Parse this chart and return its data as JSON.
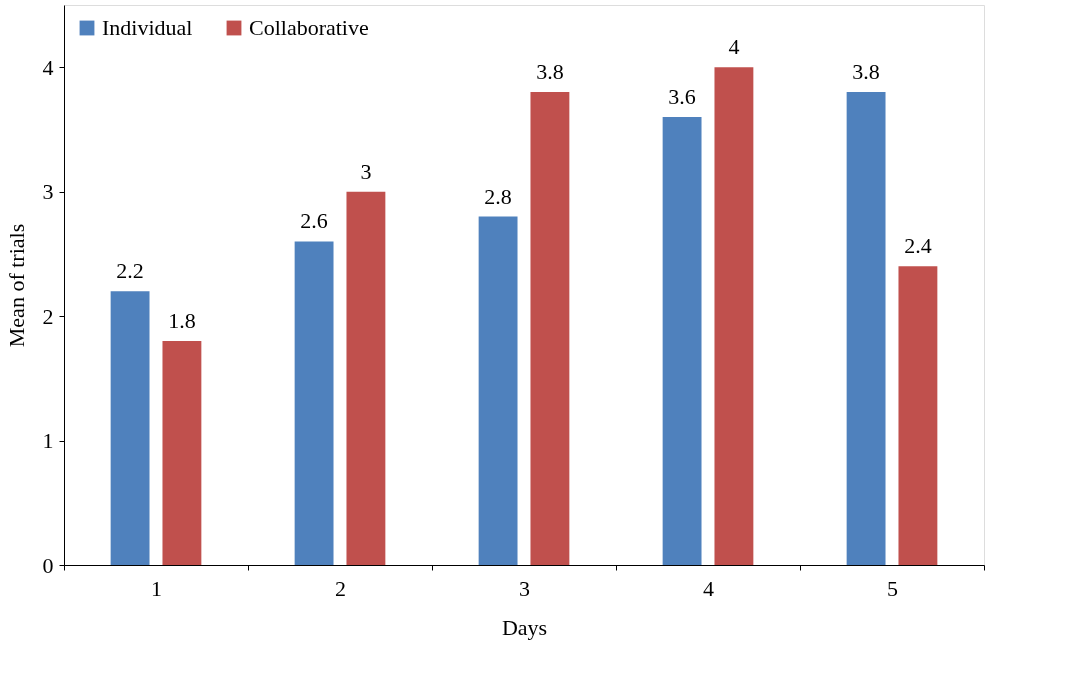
{
  "chart_data": {
    "type": "bar",
    "xlabel": "Days",
    "ylabel": "Mean of trials",
    "categories": [
      "1",
      "2",
      "3",
      "4",
      "5"
    ],
    "series": [
      {
        "name": "Individual",
        "color": "#4f81bd",
        "values": [
          2.2,
          2.6,
          2.8,
          3.6,
          3.8
        ]
      },
      {
        "name": "Collaborative",
        "color": "#c0504d",
        "values": [
          1.8,
          3,
          3.8,
          4,
          2.4
        ]
      }
    ],
    "ylim": [
      0,
      4.5
    ],
    "yticks": [
      0,
      1,
      2,
      3,
      4
    ],
    "grid": false,
    "legend": "top left",
    "data_labels": true
  }
}
